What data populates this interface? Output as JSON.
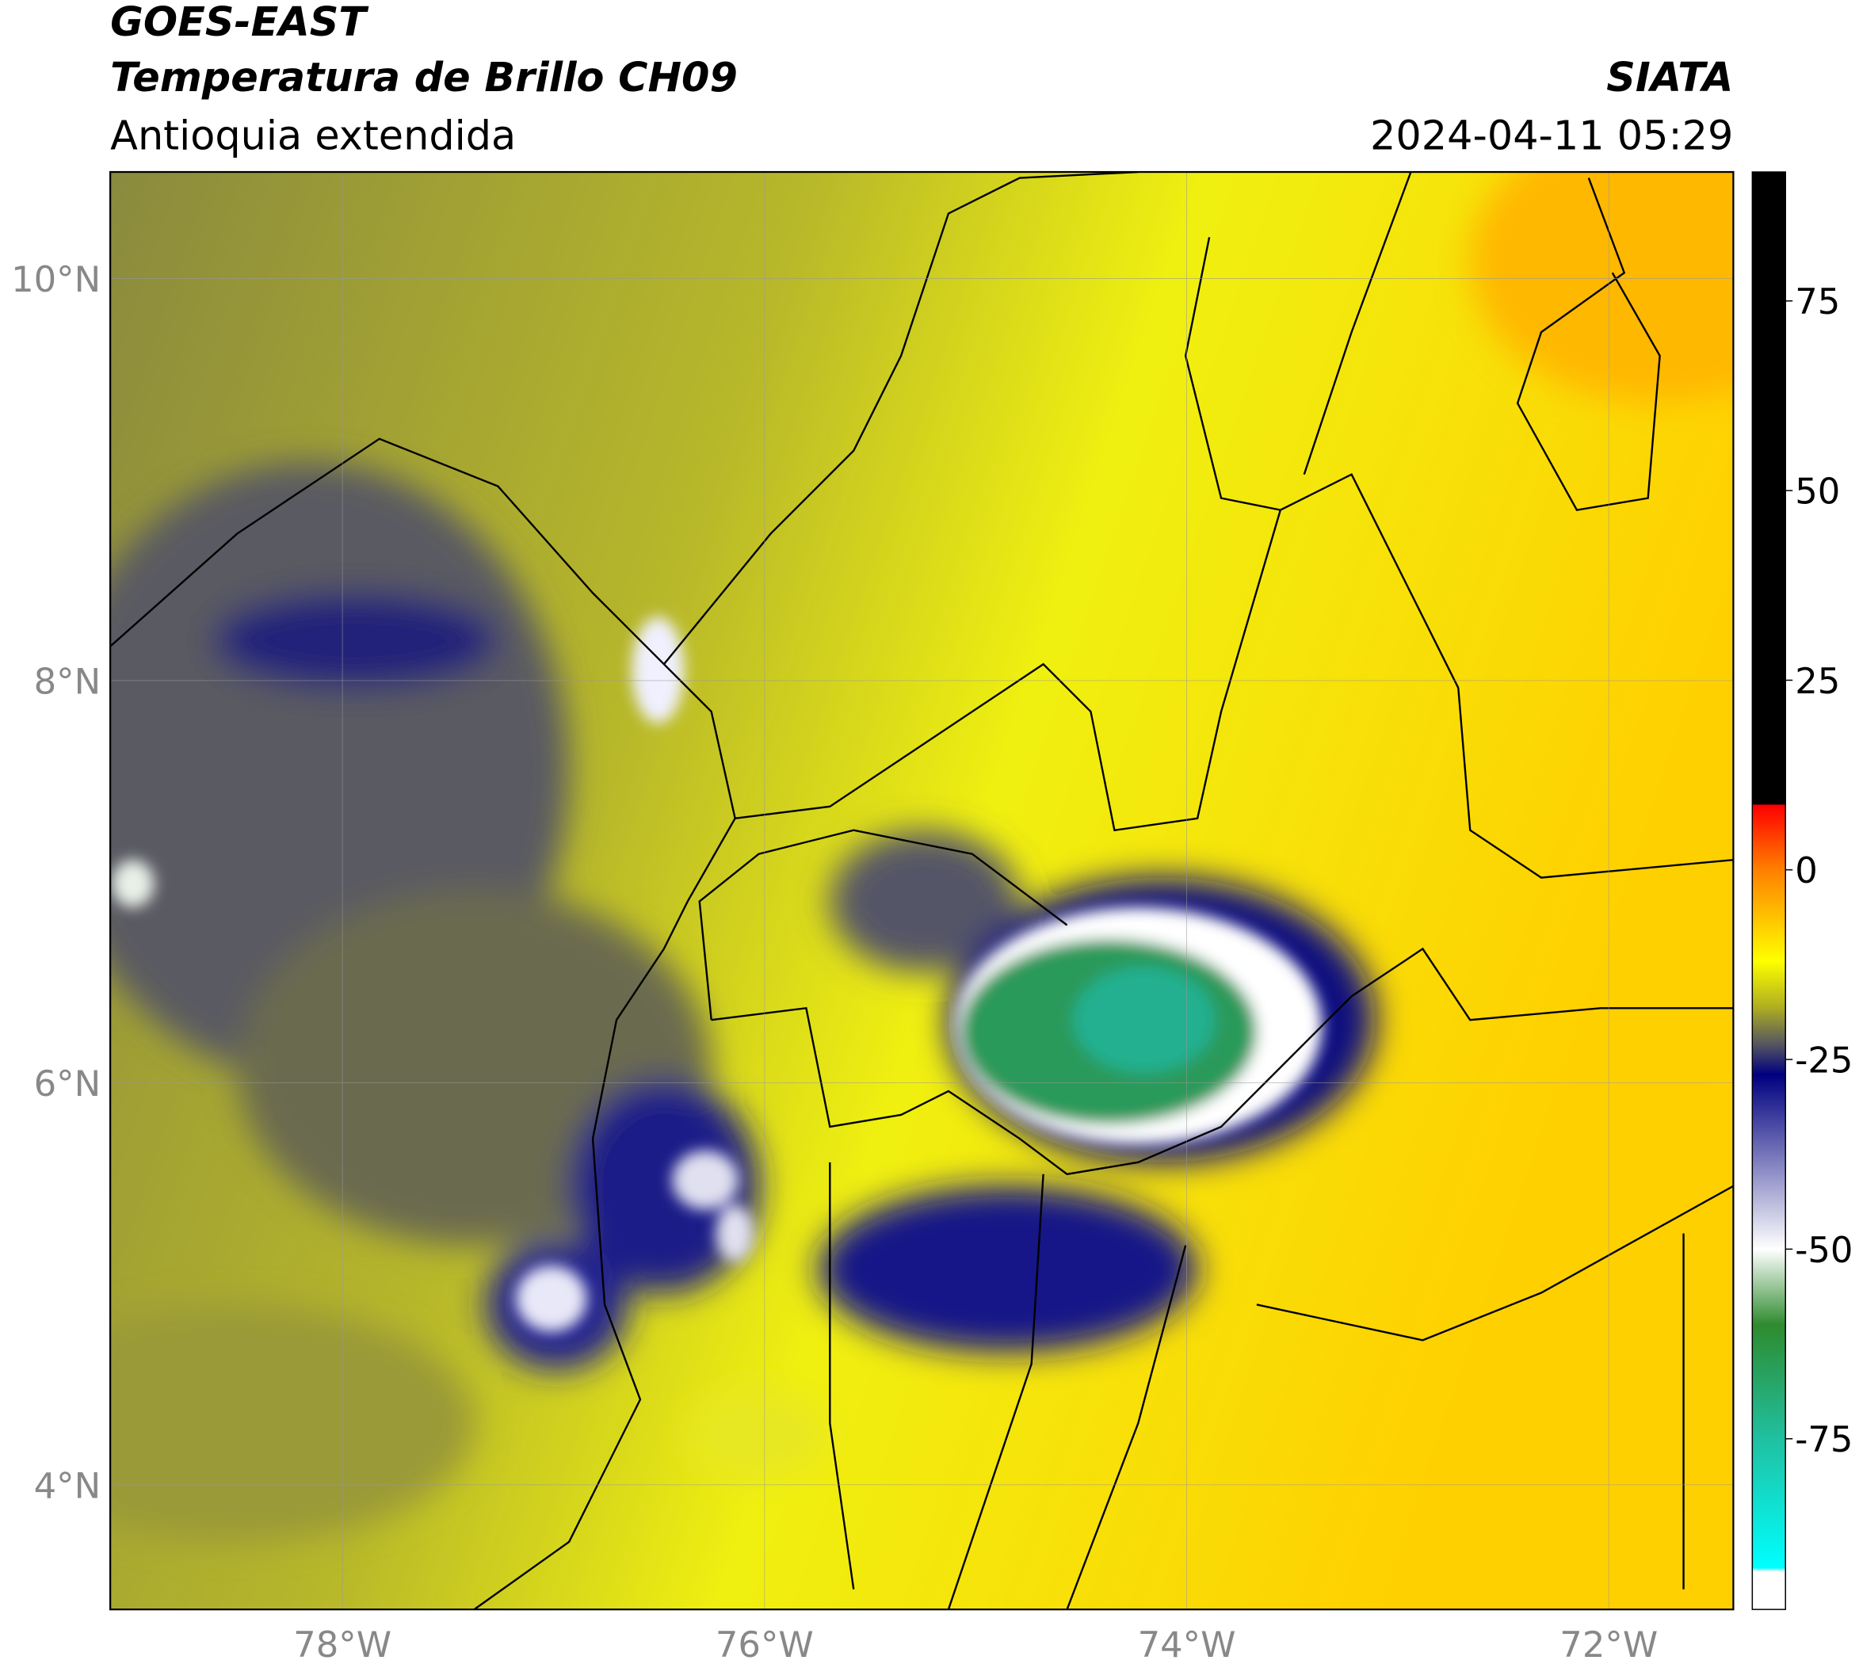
{
  "header": {
    "title": "GOES-EAST",
    "subtitle": "Temperatura de Brillo CH09",
    "region": "Antioquia extendida",
    "source": "SIATA",
    "datetime": "2024-04-11 05:29"
  },
  "map": {
    "xlim": [
      -79.1,
      -71.41
    ],
    "ylim": [
      3.38,
      10.53
    ],
    "xticks": [
      {
        "value": -78,
        "label": "78°W"
      },
      {
        "value": -76,
        "label": "76°W"
      },
      {
        "value": -74,
        "label": "74°W"
      },
      {
        "value": -72,
        "label": "72°W"
      }
    ],
    "yticks": [
      {
        "value": 4,
        "label": "4°N"
      },
      {
        "value": 6,
        "label": "6°N"
      },
      {
        "value": 8,
        "label": "8°N"
      },
      {
        "value": 10,
        "label": "10°N"
      }
    ],
    "grid": true
  },
  "colorbar": {
    "lim": [
      -97.5,
      92
    ],
    "ticks": [
      -75,
      -50,
      -25,
      0,
      25,
      50,
      75
    ],
    "stops": [
      {
        "value": 92,
        "color": "#000000"
      },
      {
        "value": 8.7,
        "color": "#000000"
      },
      {
        "value": 8.5,
        "color": "#ff0000"
      },
      {
        "value": 0,
        "color": "#ff8000"
      },
      {
        "value": -12,
        "color": "#ffff00"
      },
      {
        "value": -18,
        "color": "#b0b020"
      },
      {
        "value": -23,
        "color": "#555560"
      },
      {
        "value": -27,
        "color": "#000080"
      },
      {
        "value": -50,
        "color": "#ffffff"
      },
      {
        "value": -60,
        "color": "#2e8b2e"
      },
      {
        "value": -75,
        "color": "#20c0a0"
      },
      {
        "value": -92,
        "color": "#00ffff"
      },
      {
        "value": -92.5,
        "color": "#ffffff"
      }
    ]
  }
}
